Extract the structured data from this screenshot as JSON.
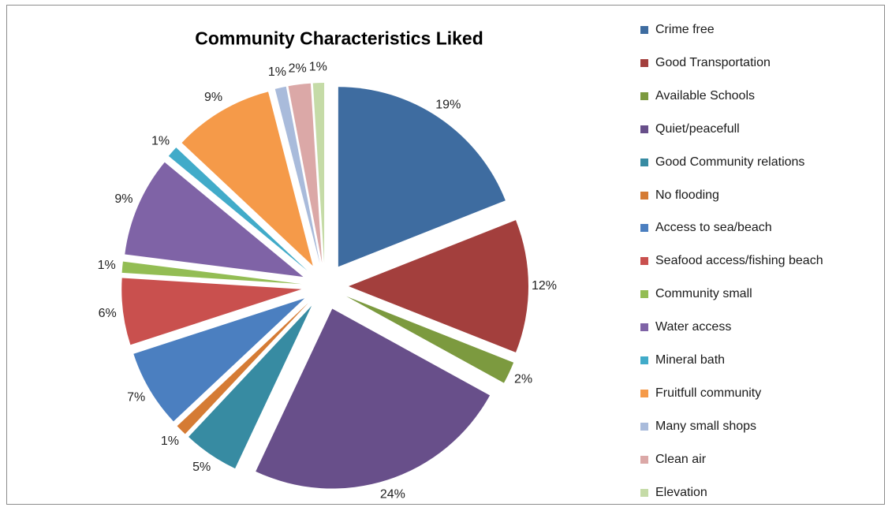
{
  "chart_data": {
    "type": "pie",
    "title": "Community Characteristics Liked",
    "exploded": true,
    "legend_position": "right",
    "categories": [
      "Crime free",
      "Good Transportation",
      "Available Schools",
      "Quiet/peacefull",
      "Good Community relations",
      "No flooding",
      "Access to sea/beach",
      "Seafood access/fishing beach",
      "Community small",
      "Water access",
      "Mineral bath",
      "Fruitfull community",
      "Many small shops",
      "Clean air",
      "Elevation"
    ],
    "values": [
      19,
      12,
      2,
      24,
      5,
      1,
      7,
      6,
      1,
      9,
      1,
      9,
      1,
      2,
      1
    ],
    "labels": [
      "19%",
      "12%",
      "2%",
      "24%",
      "5%",
      "1%",
      "7%",
      "6%",
      "1%",
      "9%",
      "1%",
      "9%",
      "1%",
      "2%",
      "1%"
    ],
    "colors": [
      "#3e6ca0",
      "#a33f3d",
      "#7c9a3f",
      "#684f8a",
      "#378ba2",
      "#d57b34",
      "#4b7fc0",
      "#c9504e",
      "#93bd54",
      "#7f63a6",
      "#41abc9",
      "#f59a49",
      "#a9bbdb",
      "#dba8a7",
      "#c5dba7"
    ]
  }
}
